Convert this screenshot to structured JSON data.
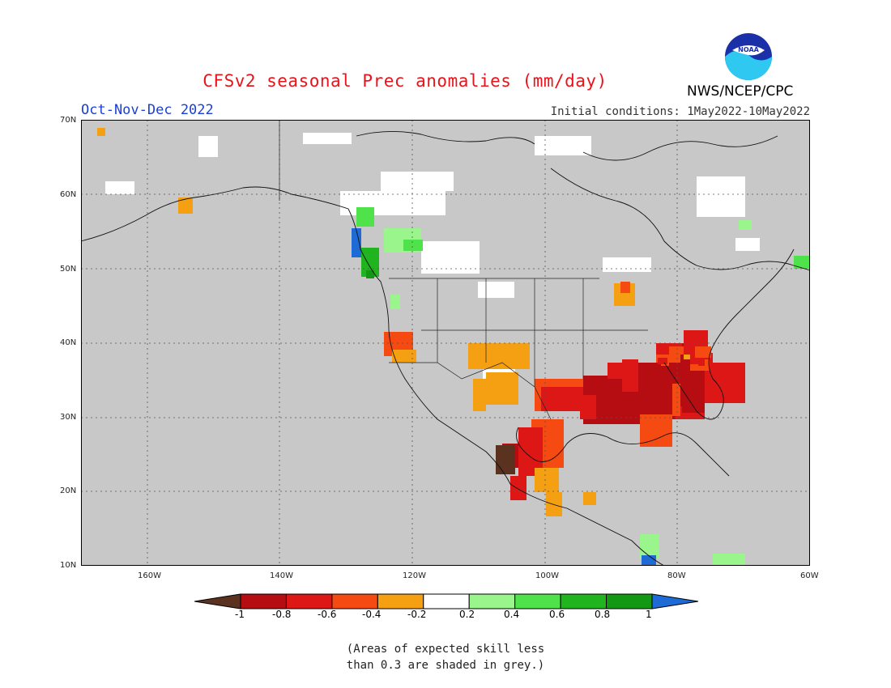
{
  "title": "CFSv2 seasonal Prec anomalies (mm/day)",
  "season": "Oct-Nov-Dec 2022",
  "initial_conditions": "Initial conditions: 1May2022-10May2022",
  "agency": "NWS/NCEP/CPC",
  "logo_text": "NOAA",
  "lat_labels": [
    "70N",
    "60N",
    "50N",
    "40N",
    "30N",
    "20N",
    "10N"
  ],
  "lon_labels": [
    "160W",
    "140W",
    "120W",
    "100W",
    "80W",
    "60W"
  ],
  "colorbar": {
    "labels": [
      "-1",
      "-0.8",
      "-0.6",
      "-0.4",
      "-0.2",
      "0.2",
      "0.4",
      "0.6",
      "0.8",
      "1"
    ],
    "colors": [
      "#5b3220",
      "#b50d12",
      "#dd1616",
      "#f54a12",
      "#f5a013",
      "#ffffff",
      "#9af58c",
      "#50e24a",
      "#20b41e",
      "#129812",
      "#1f6bd6"
    ]
  },
  "note_line1": "(Areas of expected skill less",
  "note_line2": "than 0.3 are shaded in grey.)",
  "colors": {
    "land_grey": "#c8c8c8",
    "title_red": "#e8141b",
    "season_blue": "#1a3fd6"
  }
}
